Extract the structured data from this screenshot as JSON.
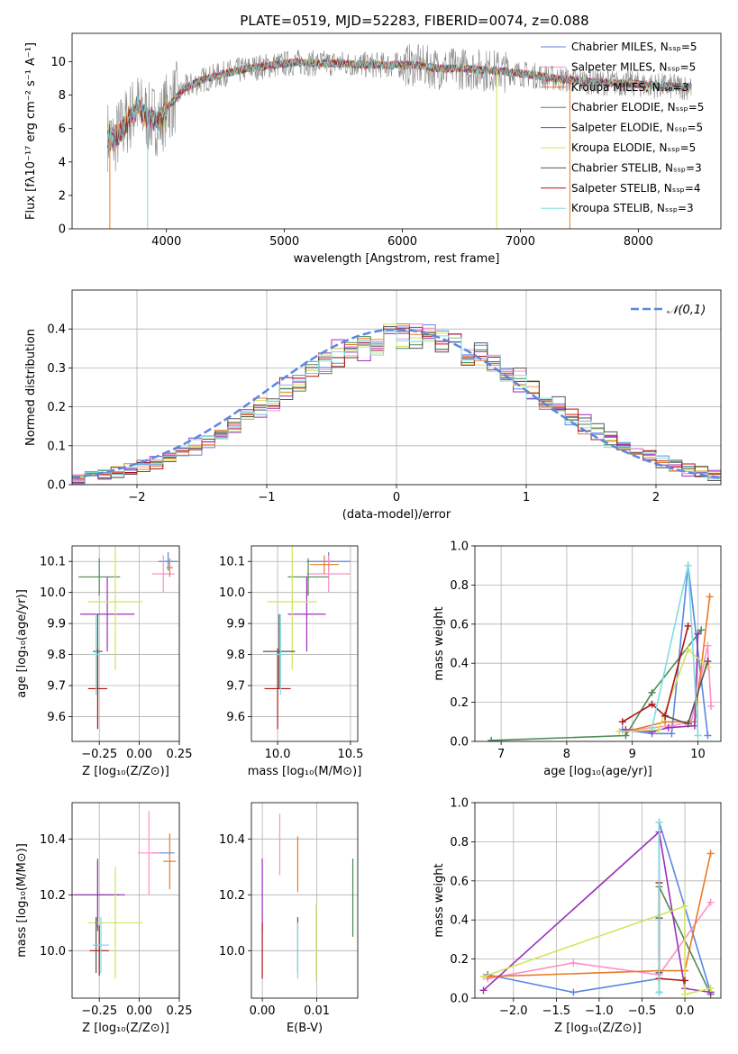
{
  "chart_data": [
    {
      "id": "spectrum",
      "type": "line",
      "title": "PLATE=0519, MJD=52283, FIBERID=0074, z=0.088",
      "xlabel": "wavelength [Angstrom, rest frame]",
      "ylabel": "Flux [fλ10⁻¹⁷ erg cm⁻² s⁻¹ A⁻¹]",
      "xlim": [
        3200,
        8700
      ],
      "ylim": [
        0,
        11.7
      ],
      "xticks": [
        4000,
        5000,
        6000,
        7000,
        8000
      ],
      "yticks": [
        0,
        2,
        4,
        6,
        8,
        10
      ],
      "grid": false,
      "legend_position": "right",
      "series": [
        {
          "name": "Chabrier MILES, N_SSP=5",
          "color": "#5b86e5"
        },
        {
          "name": "Salpeter MILES, N_SSP=5",
          "color": "#ff8fc8"
        },
        {
          "name": "Kroupa MILES, N_SSP=3",
          "color": "#e97b27"
        },
        {
          "name": "Chabrier ELODIE, N_SSP=5",
          "color": "#4d8a55"
        },
        {
          "name": "Salpeter ELODIE, N_SSP=5",
          "color": "#9b30b8"
        },
        {
          "name": "Kroupa ELODIE, N_SSP=5",
          "color": "#d4e35a"
        },
        {
          "name": "Chabrier STELIB, N_SSP=3",
          "color": "#555555"
        },
        {
          "name": "Salpeter STELIB, N_SSP=4",
          "color": "#b01515"
        },
        {
          "name": "Kroupa STELIB, N_SSP=3",
          "color": "#7fdde0"
        }
      ],
      "data_color": "#888888",
      "model_shape": {
        "x": [
          3500,
          3550,
          3650,
          3750,
          3850,
          3950,
          4000,
          4150,
          4300,
          4500,
          4700,
          4900,
          5100,
          5300,
          5500,
          5700,
          5900,
          6100,
          6300,
          6500,
          6700,
          6900,
          7100,
          7300,
          7500,
          7700,
          7900,
          8100,
          8300,
          8500
        ],
        "y": [
          5.6,
          5.2,
          6.3,
          7.3,
          6.6,
          6.5,
          7.2,
          8.4,
          8.9,
          9.3,
          9.6,
          9.8,
          9.95,
          9.9,
          9.9,
          9.8,
          9.8,
          9.8,
          9.6,
          9.6,
          9.5,
          9.4,
          9.2,
          9.0,
          8.85,
          8.75,
          8.7,
          8.6,
          8.5,
          8.5
        ]
      }
    },
    {
      "id": "residuals",
      "type": "area",
      "xlabel": "(data-model)/error",
      "ylabel": "Normed distribution",
      "xlim": [
        -2.5,
        2.5
      ],
      "ylim": [
        0,
        0.5
      ],
      "xticks": [
        -2,
        -1,
        0,
        1,
        2
      ],
      "yticks": [
        0.0,
        0.1,
        0.2,
        0.3,
        0.4
      ],
      "grid": true,
      "legend_position": "top-right",
      "legend": "𝒩(0,1)",
      "gaussian_color": "#5b86e5",
      "bin_width": 0.1,
      "bin_start": -2.5
    },
    {
      "id": "age_vs_Z",
      "type": "scatter",
      "xlabel": "Z [log₁₀(Z/Z⊙)]",
      "ylabel": "age  [log₁₀(age/yr)]",
      "xlim": [
        -0.42,
        0.25
      ],
      "ylim": [
        9.52,
        10.15
      ],
      "xticks": [
        -0.25,
        0.0,
        0.25
      ],
      "yticks": [
        9.6,
        9.7,
        9.8,
        9.9,
        10.0,
        10.1
      ],
      "grid": true,
      "points": [
        {
          "c": "#5b86e5",
          "x": 0.18,
          "y": 10.1,
          "ex": 0.06,
          "ey": 0.03
        },
        {
          "c": "#ff8fc8",
          "x": 0.15,
          "y": 10.06,
          "ex": 0.07,
          "ey": 0.06
        },
        {
          "c": "#e97b27",
          "x": 0.19,
          "y": 10.08,
          "ex": 0.02,
          "ey": 0.03
        },
        {
          "c": "#4d8a55",
          "x": -0.25,
          "y": 10.05,
          "ex": 0.13,
          "ey": 0.06
        },
        {
          "c": "#9b30b8",
          "x": -0.2,
          "y": 9.93,
          "ex": 0.17,
          "ey": 0.12
        },
        {
          "c": "#d4e35a",
          "x": -0.15,
          "y": 9.97,
          "ex": 0.17,
          "ey": 0.22
        },
        {
          "c": "#555555",
          "x": -0.26,
          "y": 9.81,
          "ex": 0.03,
          "ey": 0.12
        },
        {
          "c": "#b01515",
          "x": -0.26,
          "y": 9.69,
          "ex": 0.06,
          "ey": 0.13
        },
        {
          "c": "#7fdde0",
          "x": -0.27,
          "y": 9.8,
          "ex": 0.03,
          "ey": 0.13
        }
      ]
    },
    {
      "id": "age_vs_mass",
      "type": "scatter",
      "xlabel": "mass [log₁₀(M/M⊙)]",
      "ylabel": "",
      "xlim": [
        9.82,
        10.55
      ],
      "ylim": [
        9.52,
        10.15
      ],
      "xticks": [
        10.0,
        10.5
      ],
      "yticks": [
        9.6,
        9.7,
        9.8,
        9.9,
        10.0,
        10.1
      ],
      "grid": true,
      "points": [
        {
          "c": "#5b86e5",
          "x": 10.35,
          "y": 10.1,
          "ex": 0.15,
          "ey": 0.03
        },
        {
          "c": "#ff8fc8",
          "x": 10.35,
          "y": 10.06,
          "ex": 0.15,
          "ey": 0.06
        },
        {
          "c": "#e97b27",
          "x": 10.32,
          "y": 10.09,
          "ex": 0.1,
          "ey": 0.03
        },
        {
          "c": "#4d8a55",
          "x": 10.21,
          "y": 10.05,
          "ex": 0.14,
          "ey": 0.06
        },
        {
          "c": "#9b30b8",
          "x": 10.2,
          "y": 9.93,
          "ex": 0.13,
          "ey": 0.12
        },
        {
          "c": "#d4e35a",
          "x": 10.1,
          "y": 9.97,
          "ex": 0.17,
          "ey": 0.22
        },
        {
          "c": "#555555",
          "x": 10.01,
          "y": 9.81,
          "ex": 0.11,
          "ey": 0.12
        },
        {
          "c": "#b01515",
          "x": 10.0,
          "y": 9.69,
          "ex": 0.09,
          "ey": 0.13
        },
        {
          "c": "#7fdde0",
          "x": 10.02,
          "y": 9.8,
          "ex": 0.03,
          "ey": 0.13
        }
      ]
    },
    {
      "id": "weight_vs_age",
      "type": "line",
      "xlabel": "age  [log₁₀(age/yr)]",
      "ylabel": "mass weight",
      "xlim": [
        6.6,
        10.35
      ],
      "ylim": [
        0,
        1.0
      ],
      "xticks": [
        7,
        8,
        9,
        10
      ],
      "yticks": [
        0.0,
        0.2,
        0.4,
        0.6,
        0.8,
        1.0
      ],
      "grid": true,
      "series": [
        {
          "c": "#5b86e5",
          "x": [
            8.85,
            9.3,
            9.6,
            9.85,
            10.15
          ],
          "y": [
            0.06,
            0.04,
            0.04,
            0.9,
            0.03
          ]
        },
        {
          "c": "#ff8fc8",
          "x": [
            9.0,
            9.6,
            9.9,
            10.15,
            10.2
          ],
          "y": [
            0.06,
            0.08,
            0.1,
            0.49,
            0.18
          ]
        },
        {
          "c": "#e97b27",
          "x": [
            8.9,
            9.5,
            9.95,
            10.18
          ],
          "y": [
            0.05,
            0.1,
            0.1,
            0.74
          ]
        },
        {
          "c": "#4d8a55",
          "x": [
            6.85,
            8.9,
            9.3,
            10.05
          ],
          "y": [
            0.005,
            0.03,
            0.25,
            0.57
          ]
        },
        {
          "c": "#9b30b8",
          "x": [
            8.9,
            9.3,
            9.55,
            9.95,
            10.0
          ],
          "y": [
            0.06,
            0.05,
            0.07,
            0.08,
            0.55
          ]
        },
        {
          "c": "#d4e35a",
          "x": [
            8.8,
            9.4,
            9.85,
            10.15
          ],
          "y": [
            0.05,
            0.06,
            0.47,
            0.38
          ]
        },
        {
          "c": "#555555",
          "x": [
            9.5,
            9.85,
            10.15
          ],
          "y": [
            0.13,
            0.09,
            0.41
          ]
        },
        {
          "c": "#b01515",
          "x": [
            8.85,
            9.3,
            9.5,
            9.85
          ],
          "y": [
            0.1,
            0.19,
            0.13,
            0.59
          ]
        },
        {
          "c": "#7fdde0",
          "x": [
            9.3,
            9.85,
            10.0
          ],
          "y": [
            0.07,
            0.9,
            0.03
          ]
        }
      ]
    },
    {
      "id": "mass_vs_Z",
      "type": "scatter",
      "xlabel": "Z [log₁₀(Z/Z⊙)]",
      "ylabel": "mass [log₁₀(M/M⊙)]",
      "xlim": [
        -0.42,
        0.25
      ],
      "ylim": [
        9.83,
        10.53
      ],
      "xticks": [
        -0.25,
        0.0,
        0.25
      ],
      "yticks": [
        10.0,
        10.2,
        10.4
      ],
      "grid": true,
      "points": [
        {
          "c": "#5b86e5",
          "x": 0.15,
          "y": 10.35,
          "ex": 0.07,
          "ey": 0.0
        },
        {
          "c": "#ff8fc8",
          "x": 0.06,
          "y": 10.35,
          "ex": 0.07,
          "ey": 0.15
        },
        {
          "c": "#e97b27",
          "x": 0.19,
          "y": 10.32,
          "ex": 0.04,
          "ey": 0.1
        },
        {
          "c": "#4d8a55",
          "x": -0.26,
          "y": 10.2,
          "ex": 0.14,
          "ey": 0.13
        },
        {
          "c": "#9b30b8",
          "x": -0.26,
          "y": 10.2,
          "ex": 0.17,
          "ey": 0.12
        },
        {
          "c": "#d4e35a",
          "x": -0.15,
          "y": 10.1,
          "ex": 0.17,
          "ey": 0.2
        },
        {
          "c": "#555555",
          "x": -0.27,
          "y": 10.02,
          "ex": 0.02,
          "ey": 0.1
        },
        {
          "c": "#b01515",
          "x": -0.25,
          "y": 10.0,
          "ex": 0.06,
          "ey": 0.09
        },
        {
          "c": "#7fdde0",
          "x": -0.24,
          "y": 10.02,
          "ex": 0.05,
          "ey": 0.1
        }
      ]
    },
    {
      "id": "mass_vs_ebv",
      "type": "scatter",
      "xlabel": "E(B-V)",
      "ylabel": "",
      "xlim": [
        -0.002,
        0.0175
      ],
      "ylim": [
        9.83,
        10.53
      ],
      "xticks": [
        0.0,
        0.01
      ],
      "xticklabels": [
        "0.00",
        "0.01"
      ],
      "yticks": [
        10.0,
        10.2,
        10.4
      ],
      "grid": true,
      "points": [
        {
          "c": "#9b30b8",
          "x": 0.0,
          "y": 10.2,
          "ex": 0.0,
          "ey": 0.13
        },
        {
          "c": "#b01515",
          "x": 0.0,
          "y": 10.0,
          "ex": 0.0,
          "ey": 0.1
        },
        {
          "c": "#ff8fc8",
          "x": 0.0032,
          "y": 10.38,
          "ex": 0.0,
          "ey": 0.11
        },
        {
          "c": "#e97b27",
          "x": 0.0065,
          "y": 10.31,
          "ex": 0.0,
          "ey": 0.1
        },
        {
          "c": "#555555",
          "x": 0.0065,
          "y": 10.02,
          "ex": 0.0,
          "ey": 0.1
        },
        {
          "c": "#7fdde0",
          "x": 0.0065,
          "y": 10.0,
          "ex": 0.0,
          "ey": 0.1
        },
        {
          "c": "#d4e35a",
          "x": 0.0099,
          "y": 10.03,
          "ex": 0.0,
          "ey": 0.14
        },
        {
          "c": "#4d8a55",
          "x": 0.0166,
          "y": 10.19,
          "ex": 0.0,
          "ey": 0.14
        }
      ]
    },
    {
      "id": "weight_vs_Z",
      "type": "line",
      "xlabel": "Z [log₁₀(Z/Z⊙)]",
      "ylabel": "mass weight",
      "xlim": [
        -2.45,
        0.42
      ],
      "ylim": [
        0,
        1.0
      ],
      "xticks": [
        -2.0,
        -1.5,
        -1.0,
        -0.5,
        0.0
      ],
      "xticklabels": [
        "−2.0",
        "−1.5",
        "−1.0",
        "−0.5",
        "0.0"
      ],
      "yticks": [
        0.0,
        0.2,
        0.4,
        0.6,
        0.8,
        1.0
      ],
      "grid": true,
      "series": [
        {
          "c": "#5b86e5",
          "x": [
            -2.3,
            -1.3,
            -0.3,
            -0.3,
            0.3
          ],
          "y": [
            0.12,
            0.03,
            0.1,
            0.9,
            0.03
          ]
        },
        {
          "c": "#ff8fc8",
          "x": [
            -2.3,
            -1.3,
            -0.3,
            0.3
          ],
          "y": [
            0.1,
            0.18,
            0.12,
            0.49
          ]
        },
        {
          "c": "#e97b27",
          "x": [
            -2.3,
            -0.3,
            0.0,
            0.3
          ],
          "y": [
            0.11,
            0.14,
            0.14,
            0.74
          ]
        },
        {
          "c": "#4d8a55",
          "x": [
            -0.3,
            -0.3,
            0.3
          ],
          "y": [
            0.03,
            0.57,
            0.02
          ]
        },
        {
          "c": "#9b30b8",
          "x": [
            -2.35,
            -0.3,
            0.0,
            0.3
          ],
          "y": [
            0.04,
            0.85,
            0.05,
            0.03
          ]
        },
        {
          "c": "#d4e35a",
          "x": [
            -2.35,
            0.0,
            0.0,
            0.3
          ],
          "y": [
            0.11,
            0.47,
            0.02,
            0.05
          ]
        },
        {
          "c": "#555555",
          "x": [
            -0.3,
            -0.3
          ],
          "y": [
            0.41,
            0.13
          ]
        },
        {
          "c": "#b01515",
          "x": [
            -0.3,
            -0.3,
            0.0
          ],
          "y": [
            0.59,
            0.1,
            0.09
          ]
        },
        {
          "c": "#7fdde0",
          "x": [
            -0.3,
            -0.3
          ],
          "y": [
            0.9,
            0.03
          ]
        }
      ]
    }
  ]
}
